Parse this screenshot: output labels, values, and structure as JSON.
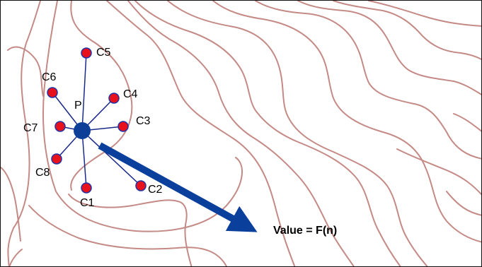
{
  "labels": {
    "center": "P",
    "c1": "C1",
    "c2": "C2",
    "c3": "C3",
    "c4": "C4",
    "c5": "C5",
    "c6": "C6",
    "c7": "C7",
    "c8": "C8",
    "value": "Value = F(n)"
  },
  "colors": {
    "contour": "#c48a86",
    "center_point": "#0d3f99",
    "neighbor_fill": "#e8121c",
    "neighbor_stroke": "#2133a6",
    "spoke": "#1a2a88",
    "arrow": "#0a3f9c",
    "border": "#111111"
  }
}
